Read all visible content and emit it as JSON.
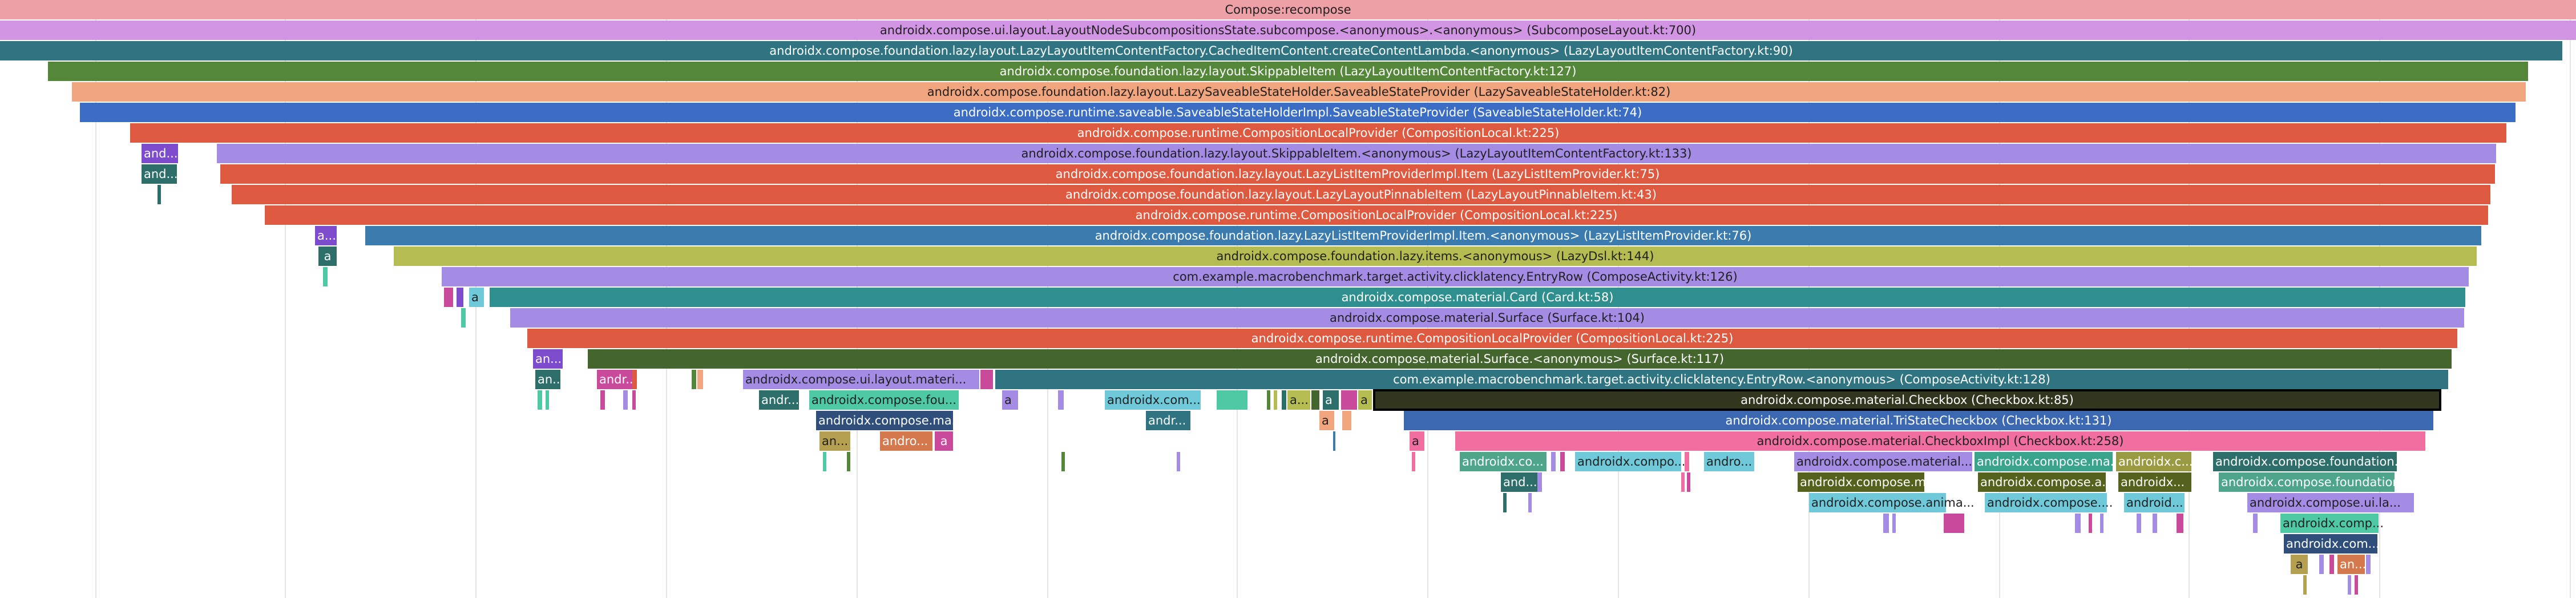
{
  "chart_data": {
    "type": "flame",
    "title": "",
    "xlabel": "",
    "ylabel": "",
    "xlim": [
      0,
      4514
    ],
    "units": "relative time span (0 = left edge of view, 4514 = right edge)",
    "gridlines_x": [
      168,
      500,
      834,
      1168,
      1502,
      1836,
      2168,
      2502,
      2836,
      3170,
      3504,
      3836,
      4170,
      4504
    ],
    "frames": [
      {
        "depth": 0,
        "start": 0,
        "end": 4514,
        "label": "Compose:recompose",
        "color": "#eda1a7"
      },
      {
        "depth": 1,
        "start": 0,
        "end": 4514,
        "label": "androidx.compose.ui.layout.LayoutNodeSubcompositionsState.subcompose.<anonymous>.<anonymous> (SubcomposeLayout.kt:700)",
        "color": "#d295e4"
      },
      {
        "depth": 2,
        "start": 0,
        "end": 4490,
        "label": "androidx.compose.foundation.lazy.layout.LazyLayoutItemContentFactory.CachedItemContent.createContentLambda.<anonymous> (LazyLayoutItemContentFactory.kt:90)",
        "color": "#2f7480"
      },
      {
        "depth": 3,
        "start": 84,
        "end": 4430,
        "label": "androidx.compose.foundation.lazy.layout.SkippableItem (LazyLayoutItemContentFactory.kt:127)",
        "color": "#55873a"
      },
      {
        "depth": 4,
        "start": 126,
        "end": 4426,
        "label": "androidx.compose.foundation.lazy.layout.LazySaveableStateHolder.SaveableStateProvider (LazySaveableStateHolder.kt:82)",
        "color": "#f0a57e"
      },
      {
        "depth": 5,
        "start": 140,
        "end": 4408,
        "label": "androidx.compose.runtime.saveable.SaveableStateHolderImpl.SaveableStateProvider (SaveableStateHolder.kt:74)",
        "color": "#3c6dc4"
      },
      {
        "depth": 6,
        "start": 228,
        "end": 4392,
        "label": "androidx.compose.runtime.CompositionLocalProvider (CompositionLocal.kt:225)",
        "color": "#dd5a41"
      },
      {
        "depth": 7,
        "start": 248,
        "end": 312,
        "label": "and...",
        "color": "#7d4ccd"
      },
      {
        "depth": 7,
        "start": 380,
        "end": 4374,
        "label": "androidx.compose.foundation.lazy.layout.SkippableItem.<anonymous> (LazyLayoutItemContentFactory.kt:133)",
        "color": "#a48ce4"
      },
      {
        "depth": 8,
        "start": 248,
        "end": 310,
        "label": "and...",
        "color": "#2e6e6a"
      },
      {
        "depth": 8,
        "start": 386,
        "end": 4372,
        "label": "androidx.compose.foundation.lazy.layout.LazyListItemProviderImpl.Item (LazyListItemProvider.kt:75)",
        "color": "#dd5a41"
      },
      {
        "depth": 9,
        "start": 276,
        "end": 282,
        "label": "",
        "color": "#2e6e6a"
      },
      {
        "depth": 9,
        "start": 406,
        "end": 4364,
        "label": "androidx.compose.foundation.lazy.layout.LazyLayoutPinnableItem (LazyLayoutPinnableItem.kt:43)",
        "color": "#dd5a41"
      },
      {
        "depth": 10,
        "start": 494,
        "end": 508,
        "label": "",
        "color": "#f38a8a"
      },
      {
        "depth": 10,
        "start": 528,
        "end": 538,
        "label": "",
        "color": "#dd5a41"
      },
      {
        "depth": 10,
        "start": 464,
        "end": 4360,
        "label": "androidx.compose.runtime.CompositionLocalProvider (CompositionLocal.kt:225)",
        "color": "#dd5a41"
      },
      {
        "depth": 11,
        "start": 552,
        "end": 590,
        "label": "a...",
        "color": "#7d4ccd"
      },
      {
        "depth": 11,
        "start": 640,
        "end": 4348,
        "label": "androidx.compose.foundation.lazy.LazyListItemProviderImpl.Item.<anonymous> (LazyListItemProvider.kt:76)",
        "color": "#3b7bad"
      },
      {
        "depth": 12,
        "start": 558,
        "end": 590,
        "label": "a",
        "color": "#2e6e6a"
      },
      {
        "depth": 12,
        "start": 690,
        "end": 4340,
        "label": "androidx.compose.foundation.lazy.items.<anonymous> (LazyDsl.kt:144)",
        "color": "#b5bd52"
      },
      {
        "depth": 13,
        "start": 566,
        "end": 574,
        "label": "",
        "color": "#4ec9a3"
      },
      {
        "depth": 13,
        "start": 774,
        "end": 4326,
        "label": "com.example.macrobenchmark.target.activity.clicklatency.EntryRow (ComposeActivity.kt:126)",
        "color": "#a48ce4"
      },
      {
        "depth": 14,
        "start": 778,
        "end": 794,
        "label": "",
        "color": "#c94a9a"
      },
      {
        "depth": 14,
        "start": 800,
        "end": 812,
        "label": "",
        "color": "#7d4ccd"
      },
      {
        "depth": 14,
        "start": 822,
        "end": 848,
        "label": "a",
        "color": "#6fc9d9"
      },
      {
        "depth": 14,
        "start": 858,
        "end": 4320,
        "label": "androidx.compose.material.Card (Card.kt:58)",
        "color": "#2f8f8e"
      },
      {
        "depth": 15,
        "start": 808,
        "end": 816,
        "label": "",
        "color": "#4ec9a3"
      },
      {
        "depth": 15,
        "start": 894,
        "end": 4318,
        "label": "androidx.compose.material.Surface (Surface.kt:104)",
        "color": "#a48ce4"
      },
      {
        "depth": 16,
        "start": 924,
        "end": 4306,
        "label": "androidx.compose.runtime.CompositionLocalProvider (CompositionLocal.kt:225)",
        "color": "#dd5a41"
      },
      {
        "depth": 17,
        "start": 934,
        "end": 986,
        "label": "an...",
        "color": "#7d4ccd"
      },
      {
        "depth": 17,
        "start": 1030,
        "end": 4296,
        "label": "androidx.compose.material.Surface.<anonymous> (Surface.kt:117)",
        "color": "#44662e"
      },
      {
        "depth": 18,
        "start": 938,
        "end": 982,
        "label": "an...",
        "color": "#2e6e6a"
      },
      {
        "depth": 18,
        "start": 1046,
        "end": 1108,
        "label": "andr...",
        "color": "#c94a9a"
      },
      {
        "depth": 18,
        "start": 1108,
        "end": 1116,
        "label": "",
        "color": "#dd5a41"
      },
      {
        "depth": 18,
        "start": 1212,
        "end": 1220,
        "label": "",
        "color": "#55873a"
      },
      {
        "depth": 18,
        "start": 1222,
        "end": 1232,
        "label": "",
        "color": "#f0a57e"
      },
      {
        "depth": 18,
        "start": 1302,
        "end": 1716,
        "label": "androidx.compose.ui.layout.materi...",
        "color": "#a48ce4"
      },
      {
        "depth": 18,
        "start": 1718,
        "end": 1740,
        "label": "",
        "color": "#c94a9a"
      },
      {
        "depth": 18,
        "start": 1744,
        "end": 4290,
        "label": "com.example.macrobenchmark.target.activity.clicklatency.EntryRow.<anonymous> (ComposeActivity.kt:128)",
        "color": "#2f7480"
      },
      {
        "depth": 19,
        "start": 942,
        "end": 950,
        "label": "",
        "color": "#4ec9a3"
      },
      {
        "depth": 19,
        "start": 956,
        "end": 962,
        "label": "",
        "color": "#4ec9a3"
      },
      {
        "depth": 19,
        "start": 1052,
        "end": 1060,
        "label": "",
        "color": "#c94a9a"
      },
      {
        "depth": 19,
        "start": 1092,
        "end": 1100,
        "label": "",
        "color": "#a48ce4"
      },
      {
        "depth": 19,
        "start": 1108,
        "end": 1114,
        "label": "",
        "color": "#c94a9a"
      },
      {
        "depth": 19,
        "start": 1330,
        "end": 1400,
        "label": "andr...",
        "color": "#2e6e6a"
      },
      {
        "depth": 19,
        "start": 1418,
        "end": 1680,
        "label": "androidx.compose.fou...",
        "color": "#4ec9a3"
      },
      {
        "depth": 19,
        "start": 1756,
        "end": 1784,
        "label": "a",
        "color": "#a48ce4"
      },
      {
        "depth": 19,
        "start": 1854,
        "end": 1864,
        "label": "",
        "color": "#a48ce4"
      },
      {
        "depth": 19,
        "start": 1936,
        "end": 2104,
        "label": "androidx.com...",
        "color": "#6fc9d9"
      },
      {
        "depth": 19,
        "start": 2132,
        "end": 2186,
        "label": "",
        "color": "#4ec9a3"
      },
      {
        "depth": 19,
        "start": 2220,
        "end": 2226,
        "label": "",
        "color": "#55873a"
      },
      {
        "depth": 19,
        "start": 2232,
        "end": 2238,
        "label": "",
        "color": "#b5bd52"
      },
      {
        "depth": 19,
        "start": 2246,
        "end": 2254,
        "label": "",
        "color": "#2e6e6a"
      },
      {
        "depth": 19,
        "start": 2256,
        "end": 2296,
        "label": "a...",
        "color": "#b5bd52"
      },
      {
        "depth": 19,
        "start": 2298,
        "end": 2312,
        "label": "",
        "color": "#44662e"
      },
      {
        "depth": 19,
        "start": 2318,
        "end": 2346,
        "label": "a",
        "color": "#2e6e6a"
      },
      {
        "depth": 19,
        "start": 2350,
        "end": 2378,
        "label": "",
        "color": "#c94a9a"
      },
      {
        "depth": 19,
        "start": 2380,
        "end": 2404,
        "label": "a",
        "color": "#b5bd52"
      },
      {
        "depth": 19,
        "start": 2408,
        "end": 4276,
        "label": "androidx.compose.material.Checkbox (Checkbox.kt:85)",
        "color": "#33361f",
        "highlighted": true
      },
      {
        "depth": 20,
        "start": 1430,
        "end": 1670,
        "label": "androidx.compose.ma...",
        "color": "#2f4f7a"
      },
      {
        "depth": 20,
        "start": 2008,
        "end": 2086,
        "label": "andr...",
        "color": "#2f7480"
      },
      {
        "depth": 20,
        "start": 2312,
        "end": 2338,
        "label": "a",
        "color": "#f0a57e"
      },
      {
        "depth": 20,
        "start": 2352,
        "end": 2368,
        "label": "",
        "color": "#f0a57e"
      },
      {
        "depth": 20,
        "start": 2460,
        "end": 4264,
        "label": "androidx.compose.material.TriStateCheckbox (Checkbox.kt:131)",
        "color": "#3b68b0"
      },
      {
        "depth": 21,
        "start": 1436,
        "end": 1490,
        "label": "an...",
        "color": "#b5a052"
      },
      {
        "depth": 21,
        "start": 1542,
        "end": 1634,
        "label": "andro...",
        "color": "#d4784e"
      },
      {
        "depth": 21,
        "start": 1638,
        "end": 1670,
        "label": "a",
        "color": "#c94a9a"
      },
      {
        "depth": 21,
        "start": 2336,
        "end": 2340,
        "label": "",
        "color": "#3b7bad"
      },
      {
        "depth": 21,
        "start": 2470,
        "end": 2496,
        "label": "a",
        "color": "#f06fa0"
      },
      {
        "depth": 21,
        "start": 2550,
        "end": 4250,
        "label": "androidx.compose.material.CheckboxImpl (Checkbox.kt:258)",
        "color": "#f06fa0"
      },
      {
        "depth": 22,
        "start": 1442,
        "end": 1448,
        "label": "",
        "color": "#4ec9a3"
      },
      {
        "depth": 22,
        "start": 1484,
        "end": 1490,
        "label": "",
        "color": "#55873a"
      },
      {
        "depth": 22,
        "start": 1860,
        "end": 1866,
        "label": "",
        "color": "#55873a"
      },
      {
        "depth": 22,
        "start": 2062,
        "end": 2068,
        "label": "",
        "color": "#a48ce4"
      },
      {
        "depth": 22,
        "start": 2474,
        "end": 2480,
        "label": "",
        "color": "#f06fa0"
      },
      {
        "depth": 22,
        "start": 2558,
        "end": 2710,
        "label": "androidx.co...",
        "color": "#4ea58a"
      },
      {
        "depth": 22,
        "start": 2718,
        "end": 2726,
        "label": "",
        "color": "#a48ce4"
      },
      {
        "depth": 22,
        "start": 2734,
        "end": 2742,
        "label": "",
        "color": "#c94a9a"
      },
      {
        "depth": 22,
        "start": 2760,
        "end": 2946,
        "label": "androidx.compo...",
        "color": "#6fc9d9"
      },
      {
        "depth": 22,
        "start": 2952,
        "end": 2960,
        "label": "",
        "color": "#f06fa0"
      },
      {
        "depth": 22,
        "start": 2986,
        "end": 3074,
        "label": "andro...",
        "color": "#6fc9d9"
      },
      {
        "depth": 22,
        "start": 3144,
        "end": 3456,
        "label": "androidx.compose.material...",
        "color": "#a48ce4"
      },
      {
        "depth": 22,
        "start": 3460,
        "end": 3702,
        "label": "androidx.compose.ma...",
        "color": "#3aa38c"
      },
      {
        "depth": 22,
        "start": 3708,
        "end": 3840,
        "label": "androidx.c...",
        "color": "#9a9a42"
      },
      {
        "depth": 22,
        "start": 3878,
        "end": 4200,
        "label": "androidx.compose.foundation.C...",
        "color": "#2e6e6a"
      },
      {
        "depth": 23,
        "start": 2630,
        "end": 2694,
        "label": "and...",
        "color": "#2e6e6a"
      },
      {
        "depth": 23,
        "start": 2694,
        "end": 2702,
        "label": "",
        "color": "#a48ce4"
      },
      {
        "depth": 23,
        "start": 2946,
        "end": 2952,
        "label": "",
        "color": "#f06fa0"
      },
      {
        "depth": 23,
        "start": 2956,
        "end": 2962,
        "label": "",
        "color": "#c94a9a"
      },
      {
        "depth": 23,
        "start": 3150,
        "end": 3372,
        "label": "androidx.compose.material...",
        "color": "#55621e"
      },
      {
        "depth": 23,
        "start": 3466,
        "end": 3690,
        "label": "androidx.compose.a...",
        "color": "#55621e"
      },
      {
        "depth": 23,
        "start": 3712,
        "end": 3840,
        "label": "androidx...",
        "color": "#55621e"
      },
      {
        "depth": 23,
        "start": 3888,
        "end": 4196,
        "label": "androidx.compose.foundation....",
        "color": "#4ea58a"
      },
      {
        "depth": 24,
        "start": 2634,
        "end": 2640,
        "label": "",
        "color": "#2e6e6a"
      },
      {
        "depth": 24,
        "start": 2678,
        "end": 2684,
        "label": "",
        "color": "#a48ce4"
      },
      {
        "depth": 24,
        "start": 3170,
        "end": 3410,
        "label": "androidx.compose.anima...",
        "color": "#6fc9d9"
      },
      {
        "depth": 24,
        "start": 3478,
        "end": 3692,
        "label": "androidx.compose....",
        "color": "#6fc9d9"
      },
      {
        "depth": 24,
        "start": 3722,
        "end": 3828,
        "label": "android...",
        "color": "#6fc9d9"
      },
      {
        "depth": 24,
        "start": 3938,
        "end": 4230,
        "label": "androidx.compose.ui.la...",
        "color": "#a48ce4"
      },
      {
        "depth": 25,
        "start": 3300,
        "end": 3310,
        "label": "",
        "color": "#a48ce4"
      },
      {
        "depth": 25,
        "start": 3316,
        "end": 3322,
        "label": "",
        "color": "#a48ce4"
      },
      {
        "depth": 25,
        "start": 3406,
        "end": 3442,
        "label": "",
        "color": "#c94a9a"
      },
      {
        "depth": 25,
        "start": 3636,
        "end": 3646,
        "label": "",
        "color": "#a48ce4"
      },
      {
        "depth": 25,
        "start": 3660,
        "end": 3666,
        "label": "",
        "color": "#c94a9a"
      },
      {
        "depth": 25,
        "start": 3680,
        "end": 3686,
        "label": "",
        "color": "#a48ce4"
      },
      {
        "depth": 25,
        "start": 3744,
        "end": 3752,
        "label": "",
        "color": "#a48ce4"
      },
      {
        "depth": 25,
        "start": 3772,
        "end": 3780,
        "label": "",
        "color": "#a48ce4"
      },
      {
        "depth": 25,
        "start": 3814,
        "end": 3826,
        "label": "",
        "color": "#c94a9a"
      },
      {
        "depth": 25,
        "start": 3948,
        "end": 3956,
        "label": "",
        "color": "#a48ce4"
      },
      {
        "depth": 25,
        "start": 3996,
        "end": 4168,
        "label": "androidx.comp...",
        "color": "#4ec9a3"
      },
      {
        "depth": 26,
        "start": 4002,
        "end": 4166,
        "label": "androidx.com...",
        "color": "#2f4f7a"
      },
      {
        "depth": 27,
        "start": 4014,
        "end": 4044,
        "label": "a",
        "color": "#b5a052"
      },
      {
        "depth": 27,
        "start": 4064,
        "end": 4072,
        "label": "",
        "color": "#a48ce4"
      },
      {
        "depth": 27,
        "start": 4082,
        "end": 4090,
        "label": "",
        "color": "#c94a9a"
      },
      {
        "depth": 27,
        "start": 4096,
        "end": 4144,
        "label": "an...",
        "color": "#d4784e"
      },
      {
        "depth": 27,
        "start": 4146,
        "end": 4154,
        "label": "",
        "color": "#a48ce4"
      },
      {
        "depth": 28,
        "start": 4036,
        "end": 4042,
        "label": "",
        "color": "#b5a052"
      },
      {
        "depth": 28,
        "start": 4114,
        "end": 4120,
        "label": "",
        "color": "#a48ce4"
      },
      {
        "depth": 28,
        "start": 4126,
        "end": 4132,
        "label": "",
        "color": "#c94a9a"
      }
    ]
  }
}
